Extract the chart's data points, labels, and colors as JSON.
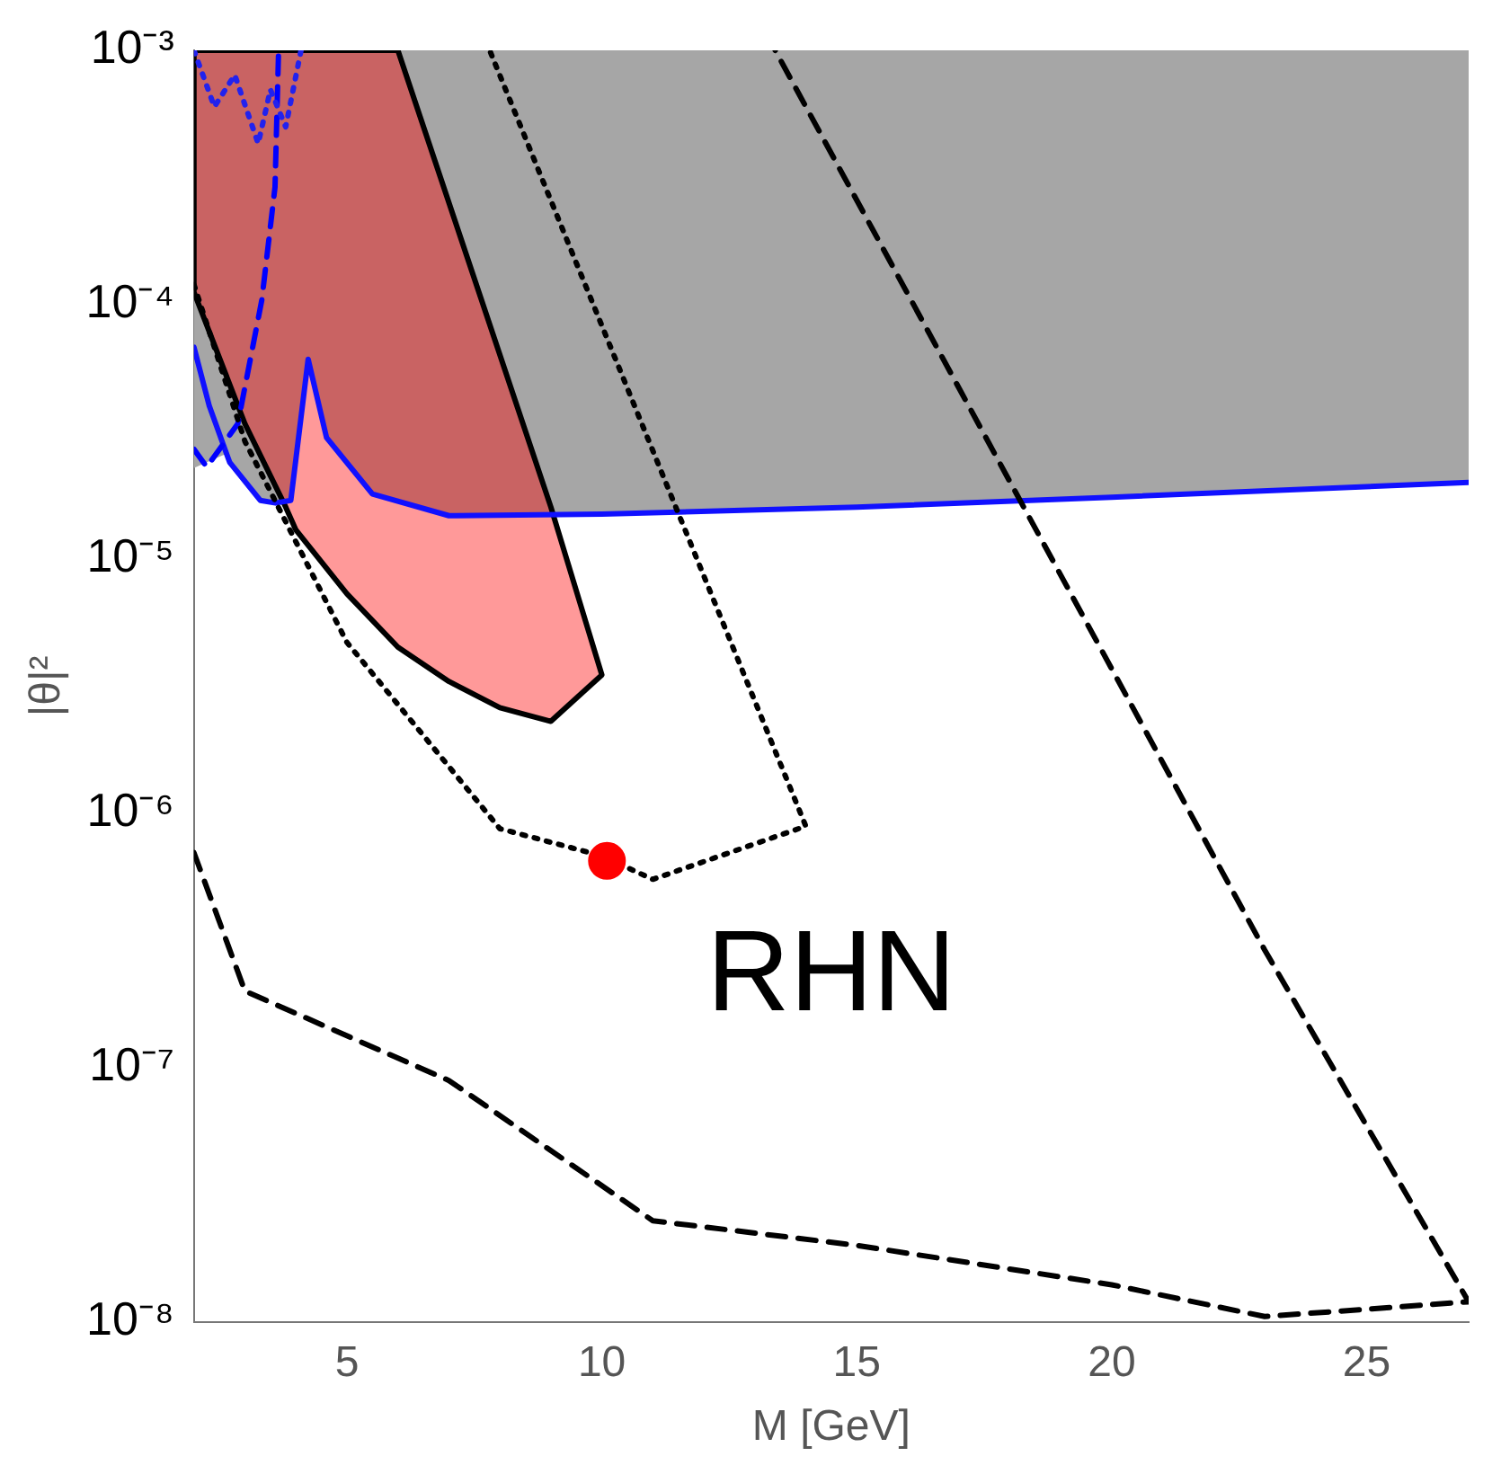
{
  "chart_data": {
    "type": "line",
    "xlabel": "M [GeV]",
    "ylabel": "|θ|²",
    "annotations": [
      "RHN"
    ],
    "log": "y",
    "grid": false,
    "legend": false,
    "xlim": [
      2,
      27
    ],
    "xticks": [
      5,
      10,
      15,
      20,
      25
    ],
    "ylim": [
      1e-08,
      0.001
    ],
    "yticks": [
      {
        "value": 1e-08,
        "label": "10⁻⁸"
      },
      {
        "value": 1e-07,
        "label": "10⁻⁷"
      },
      {
        "value": 1e-06,
        "label": "10⁻⁶"
      },
      {
        "value": 1e-05,
        "label": "10⁻⁵"
      },
      {
        "value": 0.0001,
        "label": "10⁻⁴"
      },
      {
        "value": 0.001,
        "label": "10⁻³"
      }
    ],
    "series": [
      {
        "type": "area",
        "color": "#a6a6a6",
        "x": [
          2,
          2.6,
          3.3,
          3.6,
          3.9,
          4.24,
          4.6,
          5.5,
          7,
          10,
          15,
          20,
          27,
          27,
          2,
          2
        ],
        "values": [
          2.3e-05,
          2.6e-05,
          1.7e-05,
          1.66e-05,
          1.7e-05,
          6.1e-05,
          3e-05,
          1.8e-05,
          1.48e-05,
          1.5e-05,
          1.6e-05,
          1.75e-05,
          2e-05,
          0.001,
          0.001,
          2.3e-05
        ]
      },
      {
        "type": "area",
        "color": "#ff9999",
        "x": [
          2,
          3,
          3.8,
          4,
          5,
          6,
          7,
          8,
          9,
          10,
          9,
          6,
          2,
          2
        ],
        "values": [
          0.000112,
          3.4e-05,
          1.6e-05,
          1.3e-05,
          7.3e-06,
          4.5e-06,
          3.3e-06,
          2.6e-06,
          2.3e-06,
          3.5e-06,
          1.6e-05,
          0.001,
          0.001,
          0.000112
        ]
      },
      {
        "type": "line",
        "color": "#1010ff",
        "line_style": "solid",
        "marker": "none",
        "x": [
          2,
          2.3,
          2.7,
          3.3,
          3.6,
          3.9,
          4.24,
          4.6,
          5.5,
          7,
          10,
          15,
          20,
          27
        ],
        "values": [
          6.8e-05,
          4e-05,
          2.4e-05,
          1.7e-05,
          1.66e-05,
          1.7e-05,
          6.1e-05,
          3e-05,
          1.8e-05,
          1.48e-05,
          1.5e-05,
          1.6e-05,
          1.75e-05,
          2e-05
        ]
      },
      {
        "type": "line",
        "color": "#0000ff",
        "line_style": "dashed",
        "marker": "none",
        "x": [
          2,
          2.25,
          2.86,
          3.33,
          3.59,
          3.66
        ],
        "values": [
          2.7e-05,
          2.3e-05,
          3.4e-05,
          0.000104,
          0.00029,
          0.001
        ]
      },
      {
        "type": "line",
        "color": "#2222ee",
        "line_style": "dotted",
        "marker": "none",
        "x": [
          2,
          2.4,
          2.8,
          3.26,
          3.5,
          3.8,
          4.1
        ],
        "values": [
          0.001,
          0.0006,
          0.0008,
          0.00043,
          0.0007,
          0.0005,
          0.001
        ]
      },
      {
        "type": "line",
        "color": "#000000",
        "line_style": "dotted",
        "marker": "none",
        "x": [
          2,
          3,
          5,
          8,
          10,
          11,
          14,
          7.8
        ],
        "values": [
          0.00012,
          2.9e-05,
          4.7e-06,
          8.7e-07,
          6.8e-07,
          5.5e-07,
          8.9e-07,
          0.001
        ]
      },
      {
        "type": "line",
        "color": "#000000",
        "line_style": "dashed",
        "marker": "none",
        "x": [
          2,
          3,
          7,
          11,
          15,
          20,
          23,
          27,
          23,
          13.4
        ],
        "values": [
          7e-07,
          2e-07,
          8.9e-08,
          2.5e-08,
          2e-08,
          1.4e-08,
          1.05e-08,
          1.2e-08,
          2.9e-07,
          0.001
        ]
      },
      {
        "type": "scatter",
        "color": "#ff0000",
        "marker": "circle",
        "x": [
          10.1
        ],
        "values": [
          6.5e-07
        ]
      }
    ]
  }
}
